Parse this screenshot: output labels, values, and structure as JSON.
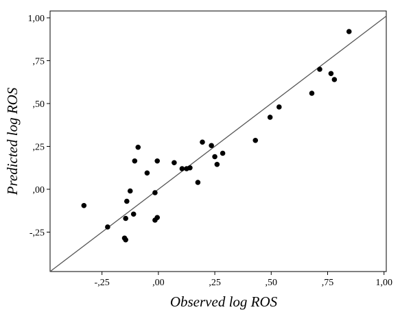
{
  "chart_data": {
    "type": "scatter",
    "xlabel": "Observed log ROS",
    "ylabel": "Predicted log ROS",
    "xlim": [
      -0.48,
      1.01
    ],
    "ylim": [
      -0.48,
      1.04
    ],
    "x_ticks": [
      -0.25,
      0.0,
      0.25,
      0.5,
      0.75,
      1.0
    ],
    "x_tick_labels": [
      "-,25",
      ",00",
      ",25",
      ",50",
      ",75",
      "1,00"
    ],
    "y_ticks": [
      -0.25,
      0.0,
      0.25,
      0.5,
      0.75,
      1.0
    ],
    "y_tick_labels": [
      "-,25",
      ",00",
      ",25",
      ",50",
      ",75",
      "1,00"
    ],
    "reference_line": {
      "type": "identity",
      "from": [
        -0.48,
        -0.48
      ],
      "to": [
        1.01,
        1.01
      ]
    },
    "grid": false,
    "legend": "none",
    "point_color": "#000000",
    "line_color": "#555555",
    "points": [
      {
        "x": -0.33,
        "y": -0.095
      },
      {
        "x": -0.225,
        "y": -0.22
      },
      {
        "x": -0.15,
        "y": -0.285
      },
      {
        "x": -0.145,
        "y": -0.295
      },
      {
        "x": -0.145,
        "y": -0.17
      },
      {
        "x": -0.14,
        "y": -0.07
      },
      {
        "x": -0.125,
        "y": -0.01
      },
      {
        "x": -0.11,
        "y": -0.145
      },
      {
        "x": -0.105,
        "y": 0.165
      },
      {
        "x": -0.09,
        "y": 0.245
      },
      {
        "x": -0.05,
        "y": 0.095
      },
      {
        "x": -0.015,
        "y": -0.18
      },
      {
        "x": -0.015,
        "y": -0.02
      },
      {
        "x": -0.005,
        "y": 0.165
      },
      {
        "x": -0.005,
        "y": -0.165
      },
      {
        "x": 0.07,
        "y": 0.155
      },
      {
        "x": 0.105,
        "y": 0.12
      },
      {
        "x": 0.125,
        "y": 0.12
      },
      {
        "x": 0.14,
        "y": 0.125
      },
      {
        "x": 0.175,
        "y": 0.04
      },
      {
        "x": 0.195,
        "y": 0.275
      },
      {
        "x": 0.235,
        "y": 0.255
      },
      {
        "x": 0.25,
        "y": 0.19
      },
      {
        "x": 0.26,
        "y": 0.145
      },
      {
        "x": 0.285,
        "y": 0.21
      },
      {
        "x": 0.43,
        "y": 0.285
      },
      {
        "x": 0.495,
        "y": 0.42
      },
      {
        "x": 0.535,
        "y": 0.48
      },
      {
        "x": 0.68,
        "y": 0.56
      },
      {
        "x": 0.715,
        "y": 0.7
      },
      {
        "x": 0.765,
        "y": 0.675
      },
      {
        "x": 0.78,
        "y": 0.64
      },
      {
        "x": 0.845,
        "y": 0.92
      }
    ]
  }
}
